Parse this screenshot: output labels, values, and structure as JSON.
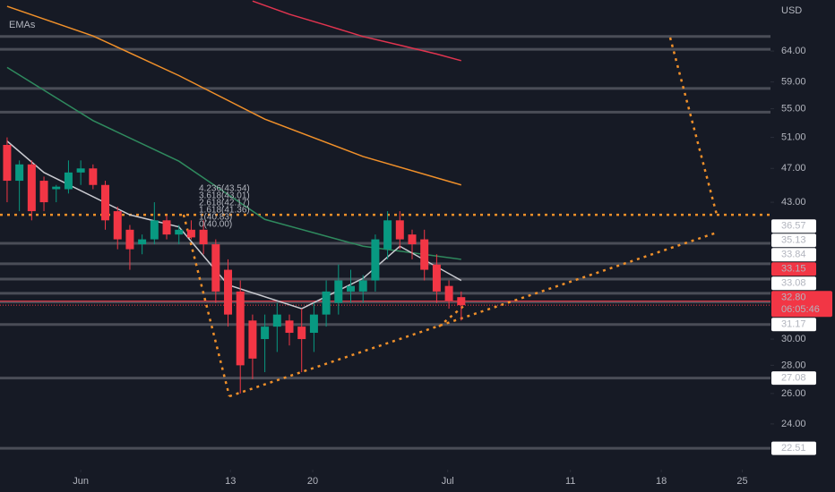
{
  "chart_data": {
    "type": "candlestick",
    "legend_title": "EMAs",
    "currency": "USD",
    "log_scale": true,
    "background": "#161a25",
    "up_color": "#089981",
    "down_color": "#f23645",
    "ylim": [
      21.28,
      73.2
    ],
    "yticks": [
      {
        "value": 64,
        "label": "64.00"
      },
      {
        "value": 59,
        "label": "59.00"
      },
      {
        "value": 55,
        "label": "55.00"
      },
      {
        "value": 51,
        "label": "51.00"
      },
      {
        "value": 47,
        "label": "47.00"
      },
      {
        "value": 43,
        "label": "43.00"
      },
      {
        "value": 30,
        "label": "30.00"
      },
      {
        "value": 28,
        "label": "28.00"
      },
      {
        "value": 26,
        "label": "26.00"
      },
      {
        "value": 24,
        "label": "24.00"
      }
    ],
    "xlim": [
      -0.58,
      62.2
    ],
    "xticks": [
      {
        "value": 6,
        "label": "Jun"
      },
      {
        "value": 18.2,
        "label": "13"
      },
      {
        "value": 24.9,
        "label": "20"
      },
      {
        "value": 35.9,
        "label": "Jul"
      },
      {
        "value": 45.9,
        "label": "11"
      },
      {
        "value": 53.3,
        "label": "18"
      },
      {
        "value": 59.9,
        "label": "25"
      }
    ],
    "open": [
      50,
      45.5,
      47.5,
      45.5,
      44.5,
      44.5,
      46.5,
      47,
      45,
      42,
      40,
      38.5,
      39,
      41,
      39.5,
      40,
      40,
      38.5,
      36,
      34,
      31.5,
      30,
      31,
      31.5,
      31,
      30.5,
      32,
      33,
      34,
      34,
      35,
      38,
      41,
      39.5,
      39,
      36.5,
      34.5,
      33.5
    ],
    "high": [
      51,
      48,
      48,
      46,
      45,
      48,
      48,
      47.5,
      45.5,
      42.5,
      40.5,
      39.5,
      43,
      41.5,
      40.5,
      41,
      41,
      39,
      37,
      35,
      32,
      32,
      33,
      32,
      32.5,
      33,
      35,
      36.5,
      36,
      35.5,
      39.5,
      42,
      42,
      40,
      40,
      37.5,
      35,
      34
    ],
    "low": [
      43,
      42,
      41,
      42,
      43,
      44,
      45,
      44.5,
      40,
      38,
      36,
      37.5,
      38.5,
      39,
      38.5,
      39,
      37.5,
      33,
      31,
      26,
      27,
      27.5,
      29,
      29.5,
      27.5,
      29,
      31,
      32,
      33,
      33,
      34,
      37,
      38,
      37,
      35,
      33,
      32.5,
      31.5
    ],
    "close": [
      45.5,
      47.5,
      42,
      43,
      44.8,
      46.5,
      47,
      45,
      41,
      39,
      38,
      39,
      41,
      39.5,
      40,
      39.2,
      38.5,
      34,
      32,
      28,
      28.5,
      31,
      32,
      30.5,
      30,
      32,
      34,
      35,
      34.5,
      35,
      39,
      41,
      39,
      38.5,
      36,
      34,
      33.2,
      32.8
    ],
    "emas": [
      {
        "color": "#e0344f",
        "x": [
          20,
          23,
          26,
          29,
          32,
          35,
          37
        ],
        "values": [
          73,
          70.5,
          68.5,
          66.5,
          65,
          63.5,
          62.4
        ]
      },
      {
        "color": "#f0902a",
        "x": [
          0,
          7,
          14,
          21,
          29,
          37
        ],
        "values": [
          72,
          66.6,
          60,
          53.5,
          48.5,
          45.0
        ]
      },
      {
        "color": "#2f8a5e",
        "x": [
          0,
          7,
          14,
          21,
          29,
          37
        ],
        "values": [
          61.3,
          53.3,
          47.9,
          41.1,
          38.3,
          37.0
        ]
      },
      {
        "color": "#c9cad0",
        "x": [
          0,
          3,
          10,
          14,
          18,
          24,
          29,
          32,
          37
        ],
        "values": [
          50.5,
          46.5,
          41.6,
          40.3,
          34.6,
          32.5,
          35.2,
          38.3,
          35.0
        ]
      }
    ],
    "levels": [
      66.5,
      64.3,
      58.0,
      54.5,
      38.6
    ],
    "dotted_level": {
      "value": 41.6,
      "color": "#f0902a"
    },
    "price_badges": [
      {
        "value": 36.57,
        "label": "36.57"
      },
      {
        "value": 35.13,
        "label": "35.13"
      },
      {
        "value": 33.84,
        "label": "33.84"
      },
      {
        "value": 33.15,
        "label": "33.15",
        "color": "#f23645"
      },
      {
        "value": 33.08,
        "label": "33.08"
      },
      {
        "value": 32.8,
        "label": "32.80",
        "countdown": "06:05:46",
        "color": "#f23645"
      },
      {
        "value": 31.17,
        "label": "31.17"
      },
      {
        "value": 27.08,
        "label": "27.08"
      },
      {
        "value": 22.51,
        "label": "22.51"
      }
    ],
    "fib_labels": [
      {
        "text": "4.236(43.54)",
        "color": "#e05a78"
      },
      {
        "text": "3.618(43.01)",
        "color": "#e05a78"
      },
      {
        "text": "2.618(42.17)",
        "color": "#e05a78"
      },
      {
        "text": "1.618(41.36)",
        "color": "#4aa383"
      },
      {
        "text": "1(40.83)",
        "color": "#8f97a6"
      },
      {
        "text": "0(40.00)",
        "color": "#8f97a6"
      }
    ]
  }
}
